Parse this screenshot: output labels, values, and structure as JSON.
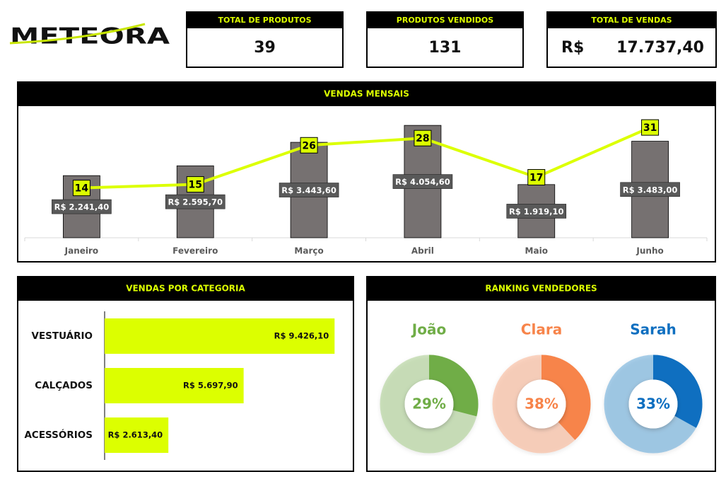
{
  "logo": "METEORA",
  "kpis": [
    {
      "label": "TOTAL DE PRODUTOS",
      "value": 39
    },
    {
      "label": "PRODUTOS VENDIDOS",
      "value": 131
    },
    {
      "label": "TOTAL DE VENDAS",
      "currency": "R$",
      "value": 17737.4,
      "value_label": "17.737,40"
    }
  ],
  "chart_data": [
    {
      "type": "combo",
      "title": "VENDAS MENSAIS",
      "categories": [
        "Janeiro",
        "Fevereiro",
        "Março",
        "Abril",
        "Maio",
        "Junho"
      ],
      "series": [
        {
          "type": "bar",
          "color": "#767171",
          "values": [
            2241.4,
            2595.7,
            3443.6,
            4054.6,
            1919.1,
            3483.0
          ],
          "value_labels": [
            "R$ 2.241,40",
            "R$ 2.595,70",
            "R$ 3.443,60",
            "R$ 4.054,60",
            "R$ 1.919,10",
            "R$ 3.483,00"
          ]
        },
        {
          "type": "line",
          "axis": "y2",
          "color": "#dcff00",
          "values": [
            14,
            15,
            26,
            28,
            17,
            31
          ]
        }
      ],
      "ylim": [
        0,
        4620
      ],
      "y2lim": [
        0,
        36
      ]
    },
    {
      "type": "hbar",
      "title": "VENDAS POR CATEGORIA",
      "categories": [
        "VESTUÁRIO",
        "CALÇADOS",
        "ACESSÓRIOS"
      ],
      "values": [
        9426.1,
        5697.9,
        2613.4
      ],
      "value_labels": [
        "R$ 9.426,10",
        "R$ 5.697,90",
        "R$ 2.613,40"
      ],
      "color": "#dcff00",
      "xlim": [
        0,
        10200
      ]
    },
    {
      "type": "donut",
      "title": "RANKING VENDEDORES",
      "categories": [
        "João",
        "Clara",
        "Sarah"
      ],
      "values": [
        29,
        38,
        33
      ],
      "value_labels": [
        "29%",
        "38%",
        "33%"
      ],
      "colors": [
        "#70ad47",
        "#f7844a",
        "#0f6fc0"
      ],
      "ylim": [
        0,
        100
      ]
    }
  ]
}
